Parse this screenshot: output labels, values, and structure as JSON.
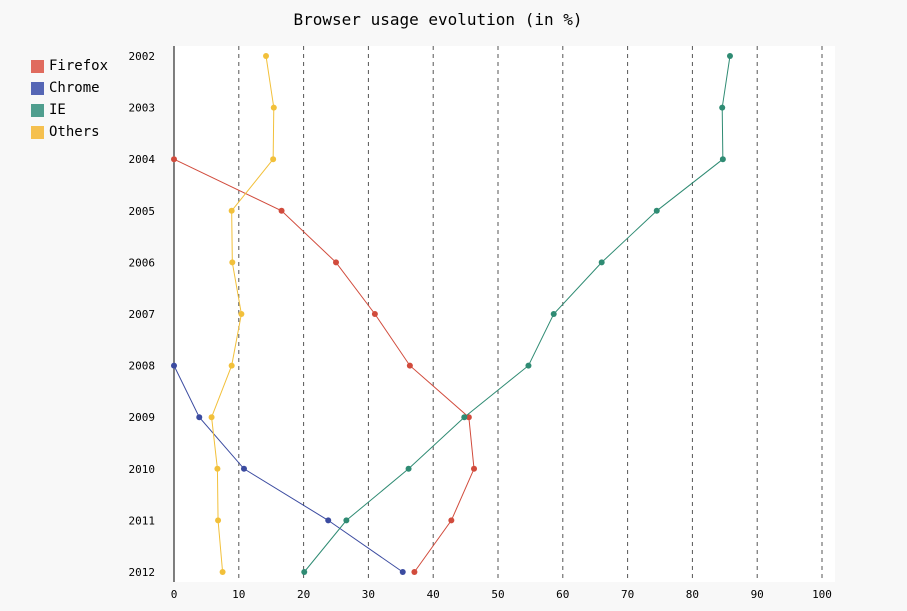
{
  "chart_data": {
    "type": "line",
    "title": "Browser usage evolution (in %)",
    "orientation": "horizontal",
    "y_categories": [
      "2002",
      "2003",
      "2004",
      "2005",
      "2006",
      "2007",
      "2008",
      "2009",
      "2010",
      "2011",
      "2012"
    ],
    "xlim": [
      0,
      100
    ],
    "x_ticks": [
      "0",
      "10",
      "20",
      "30",
      "40",
      "50",
      "60",
      "70",
      "80",
      "90",
      "100"
    ],
    "grid": "vertical dashed",
    "legend_position": "top-left",
    "series": [
      {
        "name": "Firefox",
        "color": "#d14b3c",
        "values": [
          null,
          null,
          0,
          16.6,
          25,
          31,
          36.4,
          45.5,
          46.3,
          42.8,
          37.1
        ]
      },
      {
        "name": "Chrome",
        "color": "#3b4ba0",
        "values": [
          null,
          null,
          null,
          null,
          null,
          null,
          0,
          3.9,
          10.8,
          23.8,
          35.3
        ]
      },
      {
        "name": "IE",
        "color": "#2f8b73",
        "values": [
          85.8,
          84.6,
          84.7,
          74.5,
          66,
          58.6,
          54.7,
          44.8,
          36.2,
          26.6,
          20.1
        ]
      },
      {
        "name": "Others",
        "color": "#f2c03a",
        "values": [
          14.2,
          15.4,
          15.3,
          8.9,
          9,
          10.4,
          8.9,
          5.8,
          6.7,
          6.8,
          7.5
        ]
      }
    ],
    "legend_swatch_colors": {
      "Firefox": "#e06b5e",
      "Chrome": "#5566b5",
      "IE": "#4f9e8e",
      "Others": "#f5c04f"
    }
  }
}
